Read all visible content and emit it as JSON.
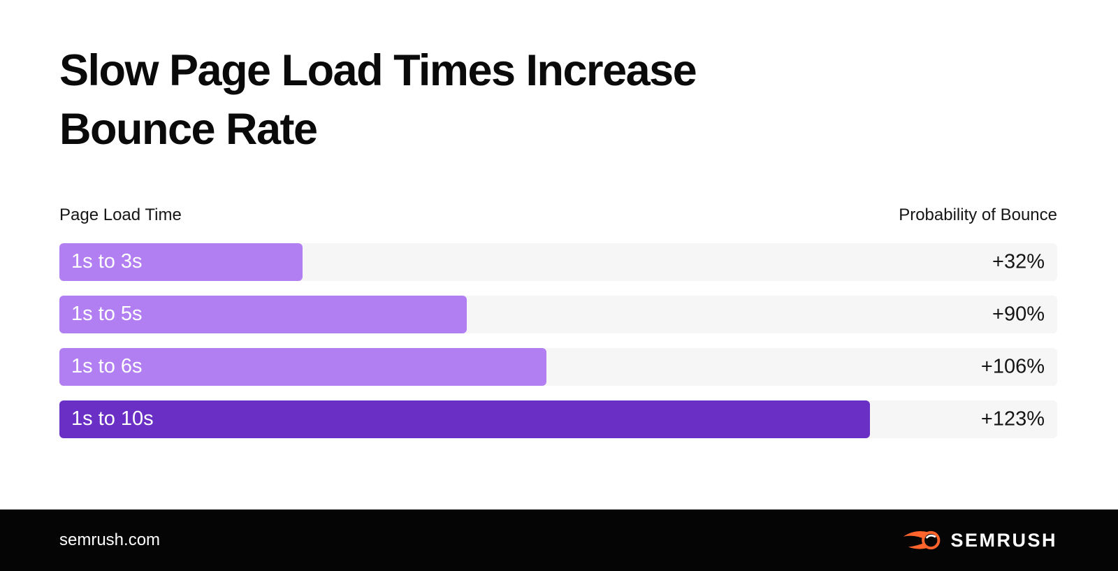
{
  "page": {
    "title_line1": "Slow Page Load Times Increase",
    "title_line2": "Bounce Rate",
    "background": "#ffffff"
  },
  "chart_header": {
    "left_label": "Page Load Time",
    "right_label": "Probability of Bounce"
  },
  "chart_data": {
    "type": "bar",
    "orientation": "horizontal",
    "title": "Slow Page Load Times Increase Bounce Rate",
    "categories": [
      "1s to 3s",
      "1s to 5s",
      "1s to 6s",
      "1s to 10s"
    ],
    "load_time_seconds": [
      3,
      5,
      6,
      10
    ],
    "values": [
      32,
      90,
      106,
      123
    ],
    "value_labels": [
      "+32%",
      "+90%",
      "+106%",
      "+123%"
    ],
    "xlabel": "Page Load Time",
    "ylabel": "Probability of Bounce",
    "bar_widths_pct": [
      24.4,
      40.8,
      48.8,
      81.2
    ],
    "bar_colors": [
      "#b27ff2",
      "#b27ff2",
      "#b27ff2",
      "#6a2fc4"
    ],
    "track_color": "#f6f6f7",
    "grid": false,
    "legend": "none"
  },
  "footer": {
    "website": "semrush.com",
    "brand_name": "SEMRUSH",
    "background": "#050505",
    "logo_color": "#ff642d"
  },
  "colors": {
    "light_purple": "#b27ff2",
    "dark_purple": "#6a2fc4",
    "track_gray": "#f6f6f7",
    "title_black": "#0a0a0a",
    "accent_orange": "#ff642d"
  }
}
